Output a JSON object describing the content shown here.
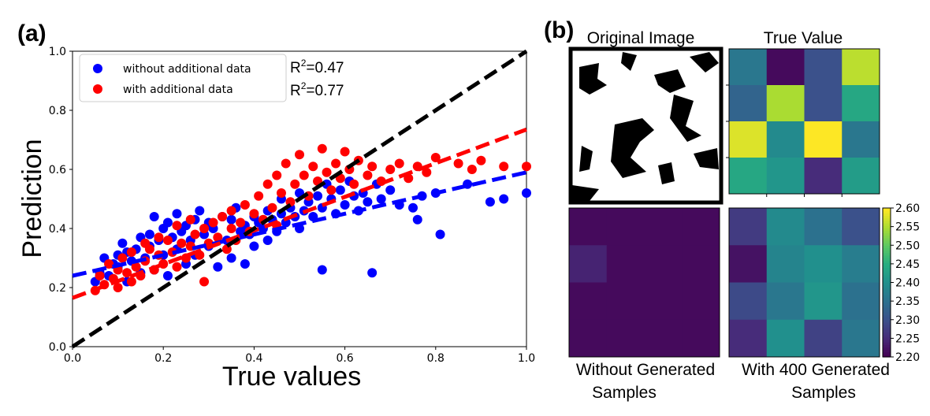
{
  "panels": {
    "a": "(a)",
    "b": "(b)"
  },
  "chart_data": [
    {
      "type": "scatter",
      "xlabel": "True values",
      "ylabel": "Prediction",
      "xlim": [
        0.0,
        1.0
      ],
      "ylim": [
        0.0,
        1.0
      ],
      "xticks": [
        "0.0",
        "0.2",
        "0.4",
        "0.6",
        "0.8",
        "1.0"
      ],
      "yticks": [
        "0.0",
        "0.2",
        "0.4",
        "0.6",
        "0.8",
        "1.0"
      ],
      "legend_position": "top-left",
      "legend": [
        "without additional data",
        "with additional data"
      ],
      "annotations": {
        "r2_a_prefix": "R",
        "r2_a_sup": "2",
        "r2_a_val": "=0.47",
        "r2_b_prefix": "R",
        "r2_b_sup": "2",
        "r2_b_val": "=0.77"
      },
      "series": [
        {
          "name": "without additional data",
          "color": "#0000ff",
          "fit": {
            "slope": 0.35,
            "intercept": 0.24
          },
          "points": [
            [
              0.05,
              0.22
            ],
            [
              0.06,
              0.25
            ],
            [
              0.07,
              0.3
            ],
            [
              0.08,
              0.24
            ],
            [
              0.09,
              0.28
            ],
            [
              0.1,
              0.31
            ],
            [
              0.1,
              0.27
            ],
            [
              0.11,
              0.35
            ],
            [
              0.12,
              0.32
            ],
            [
              0.12,
              0.22
            ],
            [
              0.13,
              0.29
            ],
            [
              0.14,
              0.33
            ],
            [
              0.15,
              0.37
            ],
            [
              0.15,
              0.25
            ],
            [
              0.16,
              0.3
            ],
            [
              0.17,
              0.38
            ],
            [
              0.17,
              0.34
            ],
            [
              0.18,
              0.44
            ],
            [
              0.18,
              0.26
            ],
            [
              0.19,
              0.36
            ],
            [
              0.2,
              0.4
            ],
            [
              0.2,
              0.31
            ],
            [
              0.21,
              0.42
            ],
            [
              0.21,
              0.24
            ],
            [
              0.22,
              0.37
            ],
            [
              0.23,
              0.33
            ],
            [
              0.23,
              0.45
            ],
            [
              0.24,
              0.39
            ],
            [
              0.25,
              0.41
            ],
            [
              0.25,
              0.28
            ],
            [
              0.26,
              0.36
            ],
            [
              0.27,
              0.43
            ],
            [
              0.27,
              0.31
            ],
            [
              0.28,
              0.46
            ],
            [
              0.29,
              0.38
            ],
            [
              0.3,
              0.34
            ],
            [
              0.3,
              0.42
            ],
            [
              0.31,
              0.4
            ],
            [
              0.32,
              0.27
            ],
            [
              0.33,
              0.44
            ],
            [
              0.34,
              0.36
            ],
            [
              0.35,
              0.43
            ],
            [
              0.35,
              0.3
            ],
            [
              0.36,
              0.47
            ],
            [
              0.37,
              0.39
            ],
            [
              0.38,
              0.41
            ],
            [
              0.38,
              0.28
            ],
            [
              0.39,
              0.38
            ],
            [
              0.4,
              0.44
            ],
            [
              0.4,
              0.34
            ],
            [
              0.41,
              0.42
            ],
            [
              0.42,
              0.4
            ],
            [
              0.43,
              0.36
            ],
            [
              0.43,
              0.46
            ],
            [
              0.44,
              0.43
            ],
            [
              0.45,
              0.39
            ],
            [
              0.46,
              0.45
            ],
            [
              0.46,
              0.5
            ],
            [
              0.47,
              0.42
            ],
            [
              0.48,
              0.47
            ],
            [
              0.49,
              0.44
            ],
            [
              0.5,
              0.52
            ],
            [
              0.5,
              0.4
            ],
            [
              0.51,
              0.46
            ],
            [
              0.52,
              0.49
            ],
            [
              0.53,
              0.44
            ],
            [
              0.54,
              0.51
            ],
            [
              0.55,
              0.26
            ],
            [
              0.55,
              0.47
            ],
            [
              0.56,
              0.55
            ],
            [
              0.57,
              0.5
            ],
            [
              0.58,
              0.45
            ],
            [
              0.59,
              0.53
            ],
            [
              0.6,
              0.48
            ],
            [
              0.61,
              0.56
            ],
            [
              0.62,
              0.51
            ],
            [
              0.63,
              0.46
            ],
            [
              0.64,
              0.52
            ],
            [
              0.65,
              0.49
            ],
            [
              0.66,
              0.25
            ],
            [
              0.67,
              0.55
            ],
            [
              0.68,
              0.5
            ],
            [
              0.7,
              0.53
            ],
            [
              0.72,
              0.48
            ],
            [
              0.75,
              0.47
            ],
            [
              0.76,
              0.43
            ],
            [
              0.77,
              0.51
            ],
            [
              0.8,
              0.52
            ],
            [
              0.81,
              0.38
            ],
            [
              0.87,
              0.55
            ],
            [
              0.92,
              0.49
            ],
            [
              0.95,
              0.5
            ],
            [
              1.0,
              0.52
            ]
          ]
        },
        {
          "name": "with additional data",
          "color": "#ff0000",
          "fit": {
            "slope": 0.57,
            "intercept": 0.165
          },
          "points": [
            [
              0.05,
              0.19
            ],
            [
              0.06,
              0.24
            ],
            [
              0.07,
              0.21
            ],
            [
              0.08,
              0.28
            ],
            [
              0.09,
              0.23
            ],
            [
              0.1,
              0.26
            ],
            [
              0.1,
              0.2
            ],
            [
              0.11,
              0.3
            ],
            [
              0.12,
              0.25
            ],
            [
              0.13,
              0.22
            ],
            [
              0.13,
              0.32
            ],
            [
              0.14,
              0.27
            ],
            [
              0.15,
              0.24
            ],
            [
              0.16,
              0.35
            ],
            [
              0.16,
              0.29
            ],
            [
              0.17,
              0.33
            ],
            [
              0.18,
              0.26
            ],
            [
              0.19,
              0.37
            ],
            [
              0.19,
              0.31
            ],
            [
              0.2,
              0.28
            ],
            [
              0.21,
              0.36
            ],
            [
              0.22,
              0.32
            ],
            [
              0.23,
              0.41
            ],
            [
              0.23,
              0.27
            ],
            [
              0.24,
              0.35
            ],
            [
              0.25,
              0.3
            ],
            [
              0.26,
              0.43
            ],
            [
              0.26,
              0.34
            ],
            [
              0.27,
              0.38
            ],
            [
              0.28,
              0.31
            ],
            [
              0.29,
              0.4
            ],
            [
              0.29,
              0.22
            ],
            [
              0.3,
              0.35
            ],
            [
              0.31,
              0.42
            ],
            [
              0.32,
              0.37
            ],
            [
              0.33,
              0.44
            ],
            [
              0.34,
              0.33
            ],
            [
              0.35,
              0.4
            ],
            [
              0.35,
              0.46
            ],
            [
              0.36,
              0.36
            ],
            [
              0.37,
              0.42
            ],
            [
              0.38,
              0.48
            ],
            [
              0.39,
              0.39
            ],
            [
              0.4,
              0.45
            ],
            [
              0.41,
              0.51
            ],
            [
              0.42,
              0.43
            ],
            [
              0.43,
              0.55
            ],
            [
              0.44,
              0.47
            ],
            [
              0.45,
              0.58
            ],
            [
              0.45,
              0.41
            ],
            [
              0.46,
              0.52
            ],
            [
              0.47,
              0.62
            ],
            [
              0.48,
              0.49
            ],
            [
              0.49,
              0.55
            ],
            [
              0.5,
              0.65
            ],
            [
              0.51,
              0.58
            ],
            [
              0.52,
              0.51
            ],
            [
              0.53,
              0.61
            ],
            [
              0.54,
              0.56
            ],
            [
              0.55,
              0.67
            ],
            [
              0.56,
              0.59
            ],
            [
              0.57,
              0.53
            ],
            [
              0.58,
              0.62
            ],
            [
              0.59,
              0.57
            ],
            [
              0.6,
              0.66
            ],
            [
              0.61,
              0.6
            ],
            [
              0.62,
              0.55
            ],
            [
              0.63,
              0.63
            ],
            [
              0.65,
              0.58
            ],
            [
              0.66,
              0.61
            ],
            [
              0.68,
              0.56
            ],
            [
              0.7,
              0.6
            ],
            [
              0.72,
              0.62
            ],
            [
              0.74,
              0.57
            ],
            [
              0.76,
              0.61
            ],
            [
              0.78,
              0.59
            ],
            [
              0.8,
              0.64
            ],
            [
              0.85,
              0.62
            ],
            [
              0.88,
              0.6
            ],
            [
              0.9,
              0.63
            ],
            [
              0.95,
              0.61
            ],
            [
              1.0,
              0.61
            ]
          ]
        },
        {
          "name": "",
          "color": "#000000",
          "line": {
            "slope": 1.0,
            "intercept": 0.0
          }
        }
      ]
    },
    {
      "type": "heatmap",
      "title_left": "Original Image",
      "title_right": "True  Value",
      "caption_left_1": "Without  Generated",
      "caption_left_2": "Samples",
      "caption_right_1": "With   400 Generated",
      "caption_right_2": "Samples",
      "colormap": "viridis",
      "vmin": 2.2,
      "vmax": 2.6,
      "colorbar_ticks": [
        "2.20",
        "2.25",
        "2.30",
        "2.35",
        "2.40",
        "2.45",
        "2.50",
        "2.55",
        "2.60"
      ],
      "true_value": [
        [
          2.36,
          2.21,
          2.3,
          2.56
        ],
        [
          2.33,
          2.55,
          2.3,
          2.44
        ],
        [
          2.58,
          2.39,
          2.6,
          2.36
        ],
        [
          2.44,
          2.41,
          2.25,
          2.42
        ]
      ],
      "without_generated": [
        [
          2.21,
          2.21,
          2.21,
          2.21
        ],
        [
          2.24,
          2.21,
          2.21,
          2.21
        ],
        [
          2.21,
          2.21,
          2.21,
          2.21
        ],
        [
          2.21,
          2.21,
          2.21,
          2.21
        ]
      ],
      "with_400_generated": [
        [
          2.27,
          2.39,
          2.35,
          2.3
        ],
        [
          2.22,
          2.38,
          2.4,
          2.37
        ],
        [
          2.29,
          2.36,
          2.41,
          2.35
        ],
        [
          2.25,
          2.4,
          2.28,
          2.36
        ]
      ]
    }
  ]
}
